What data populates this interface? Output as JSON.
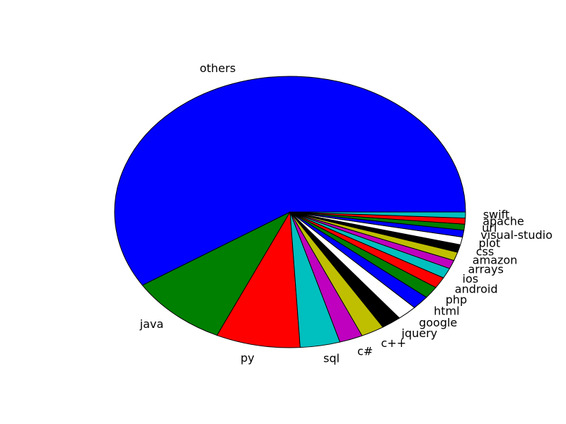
{
  "chart_data": {
    "type": "pie",
    "title": "",
    "labels": [
      "others",
      "java",
      "py",
      "sql",
      "c#",
      "c++",
      "jquery",
      "google",
      "html",
      "php",
      "android",
      "ios",
      "arrays",
      "amazon",
      "css",
      "plot",
      "visual-studio",
      "url",
      "apache",
      "swift"
    ],
    "values": [
      57.9,
      8.9,
      7.6,
      3.6,
      2.1,
      2.1,
      1.8,
      1.8,
      1.6,
      1.4,
      1.3,
      1.2,
      1.0,
      1.0,
      0.9,
      0.9,
      0.8,
      0.7,
      0.7,
      0.7
    ],
    "colors": [
      "#0000ff",
      "#008000",
      "#ff0000",
      "#00bfbf",
      "#bf00bf",
      "#bfbf00",
      "#000000",
      "#ffffff",
      "#0000ff",
      "#008000",
      "#ff0000",
      "#00bfbf",
      "#bf00bf",
      "#bfbf00",
      "#000000",
      "#ffffff",
      "#0000ff",
      "#008000",
      "#ff0000",
      "#00bfbf"
    ],
    "start_angle_deg": 0,
    "direction": "counterclockwise",
    "legend": "none"
  }
}
